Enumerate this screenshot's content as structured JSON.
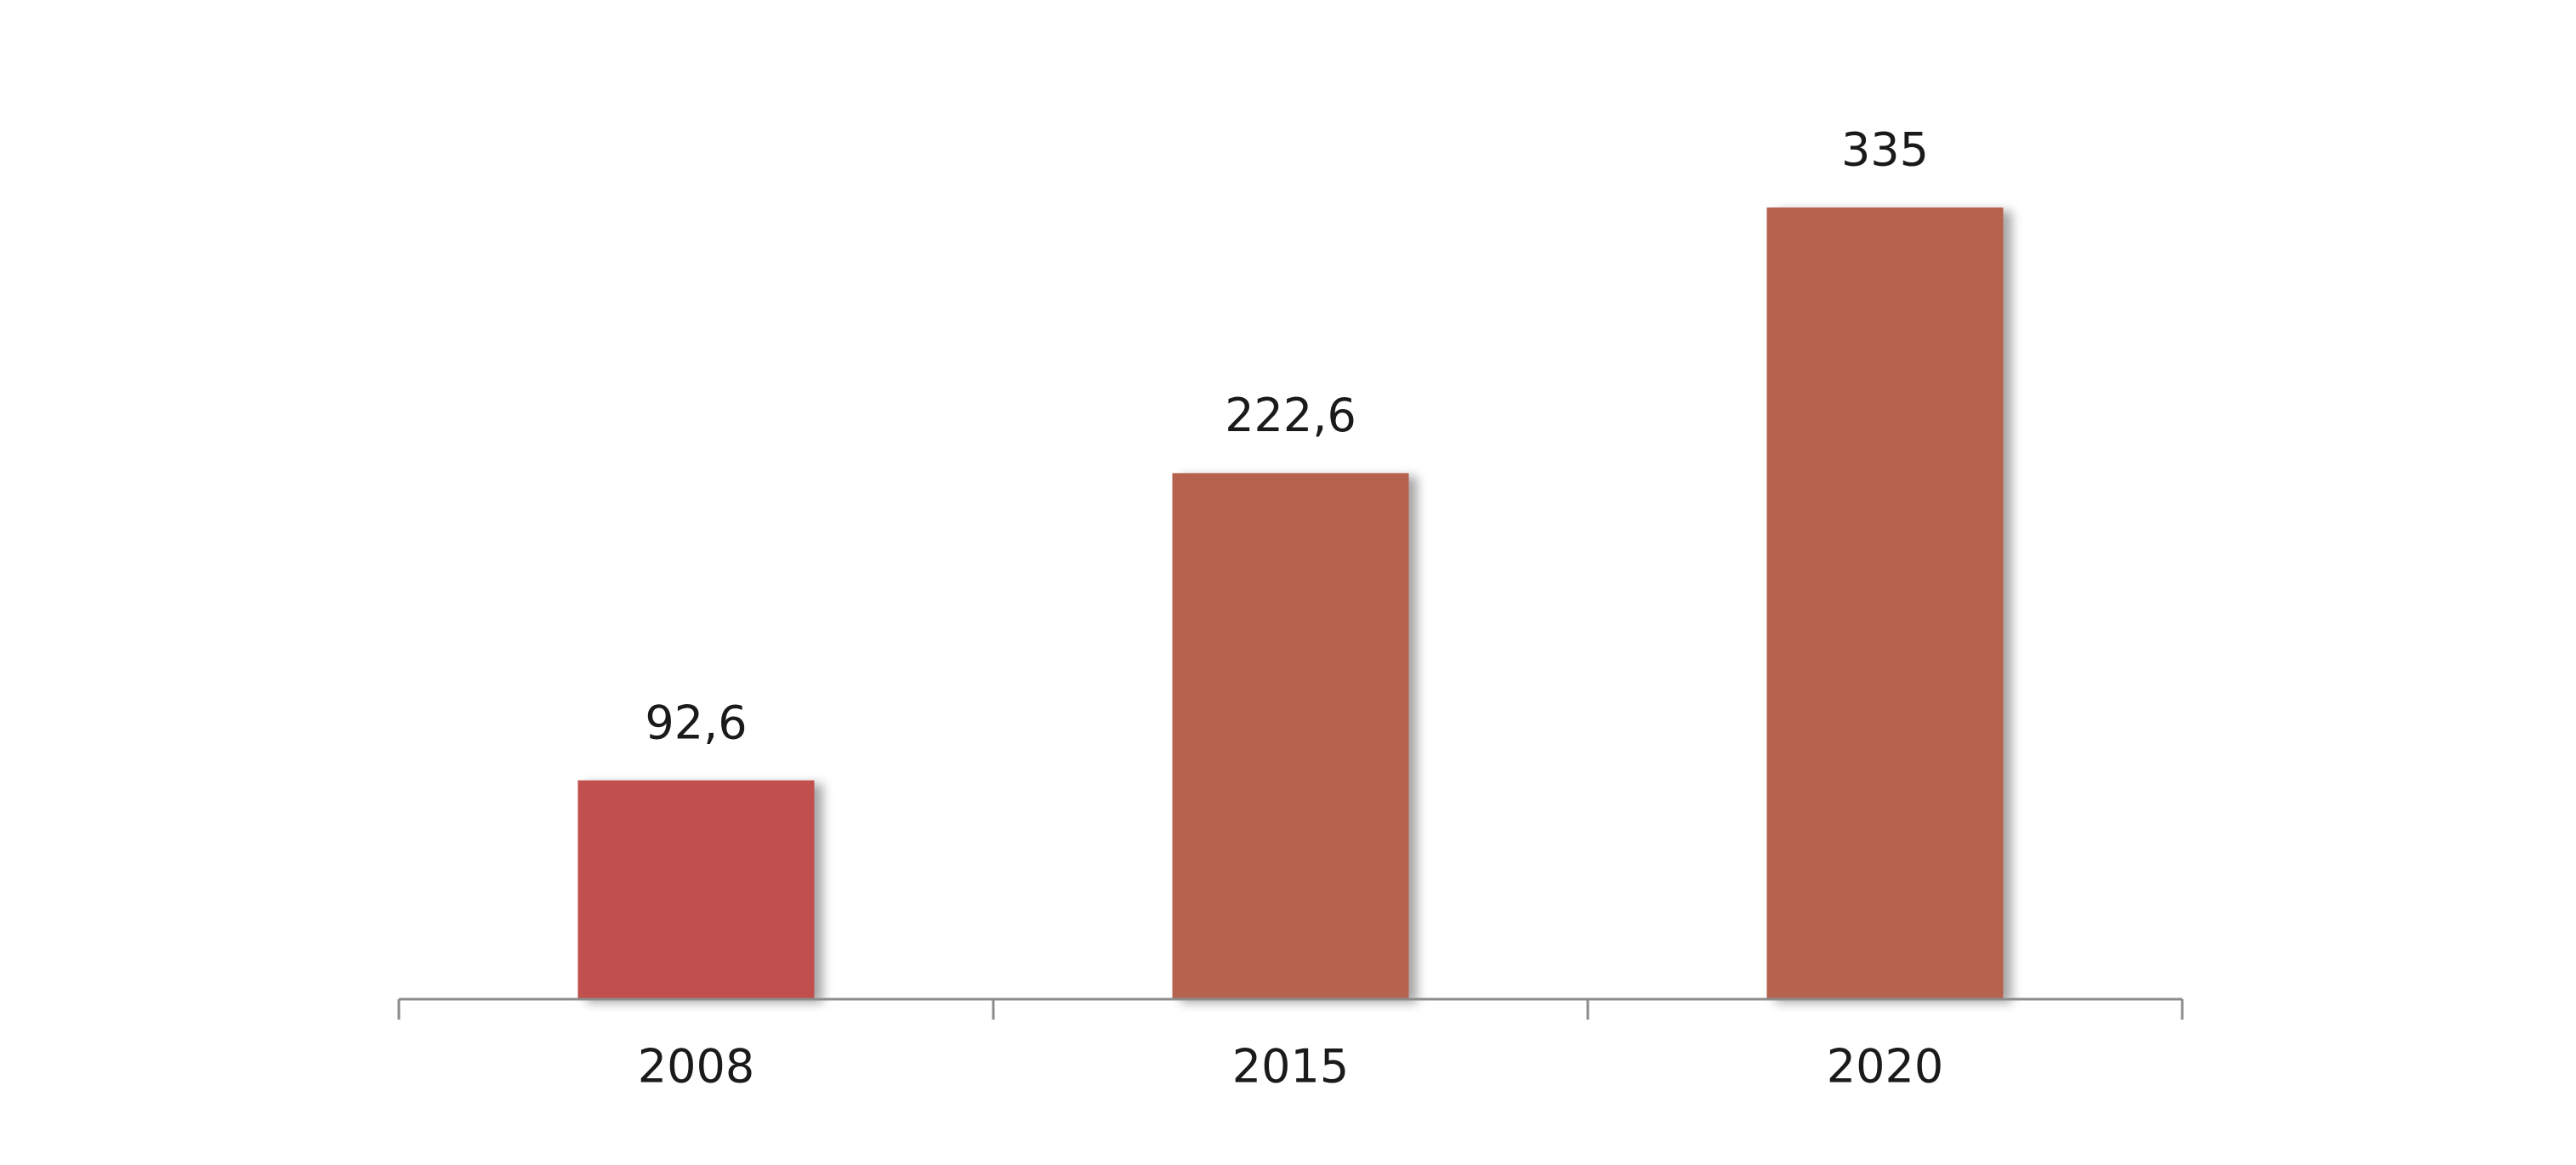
{
  "chart_data": {
    "type": "bar",
    "categories": [
      "2008",
      "2015",
      "2020"
    ],
    "values": [
      92.6,
      222.6,
      335
    ],
    "value_labels": [
      "92,6",
      "222,6",
      "335"
    ],
    "colors": [
      "#c0504d",
      "#b5634f",
      "#b5634f"
    ]
  }
}
